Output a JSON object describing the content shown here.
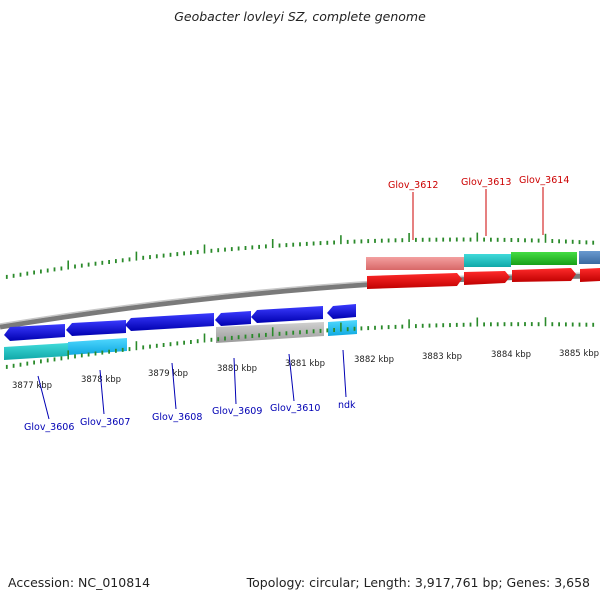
{
  "header": {
    "title": "Geobacter lovleyi SZ, complete genome"
  },
  "footer": {
    "accession": "Accession: NC_010814",
    "summary": "Topology: circular; Length: 3,917,761 bp; Genes: 3,658"
  },
  "scale": {
    "ticks": [
      "3877 kbp",
      "3878 kbp",
      "3879 kbp",
      "3880 kbp",
      "3881 kbp",
      "3882 kbp",
      "3883 kbp",
      "3884 kbp",
      "3885 kbp"
    ]
  },
  "genes": {
    "forward": [
      "Glov_3612",
      "Glov_3613",
      "Glov_3614"
    ],
    "reverse": [
      "Glov_3606",
      "Glov_3607",
      "Glov_3608",
      "Glov_3609",
      "Glov_3610",
      "ndk"
    ]
  },
  "colors": {
    "forward_cds": "#ee0000",
    "reverse_cds": "#0000dd",
    "forward_label": "#cc0000",
    "reverse_label": "#0000b4",
    "tick": "#2a8a2a",
    "backbone": "#888888"
  }
}
